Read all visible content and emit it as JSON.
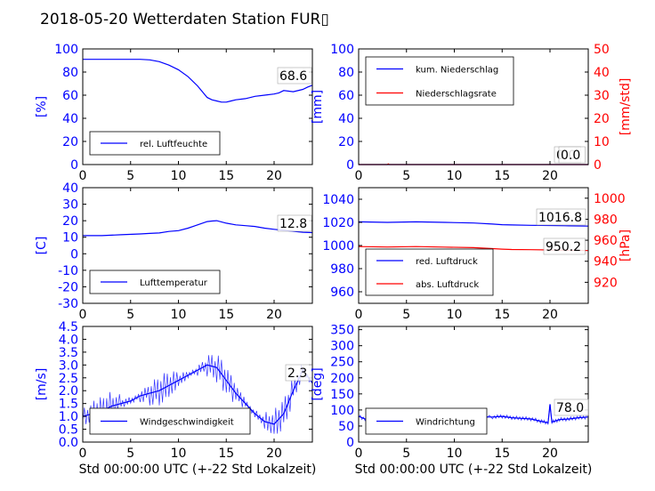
{
  "figure": {
    "title": "2018-05-20 Wetterdaten Station FUR▯"
  },
  "colors": {
    "blue": "#0000ff",
    "red": "#ff0000",
    "lightblue": "#7777ff",
    "tick_left": "#0000ff",
    "tick_right": "#ff0000"
  },
  "chart_data": [
    {
      "id": "humidity",
      "type": "line",
      "xlim": [
        0,
        24
      ],
      "ylim": [
        0,
        100
      ],
      "xticks": [
        0,
        5,
        10,
        15,
        20
      ],
      "yticks": [
        0,
        20,
        40,
        60,
        80,
        100
      ],
      "ylabel": "[%]",
      "annotation": "68.6",
      "legend": {
        "placement": "lower-left",
        "entries": [
          "rel. Luftfeuchte"
        ]
      },
      "series": [
        {
          "name": "rel. Luftfeuchte",
          "color": "#0000ff",
          "x": [
            0,
            2,
            4,
            6,
            7,
            8,
            9,
            10,
            11,
            12,
            12.5,
            13,
            13.5,
            14,
            14.5,
            15,
            15.5,
            16,
            17,
            18,
            19,
            20,
            20.5,
            21,
            22,
            23,
            23.5,
            24
          ],
          "y": [
            91,
            91,
            91,
            91,
            90.5,
            89,
            86,
            82,
            76,
            68,
            63,
            58,
            56,
            55,
            54,
            54,
            55,
            56,
            57,
            59,
            60,
            61,
            62,
            64,
            63,
            65,
            67,
            68.6
          ]
        }
      ]
    },
    {
      "id": "precip",
      "type": "line",
      "xlim": [
        0,
        24
      ],
      "ylim": [
        0,
        100
      ],
      "ylim_right": [
        0,
        50
      ],
      "xticks": [
        0,
        5,
        10,
        15,
        20
      ],
      "yticks": [
        0,
        20,
        40,
        60,
        80,
        100
      ],
      "yticks_right": [
        0,
        10,
        20,
        30,
        40,
        50
      ],
      "ylabel": "[mm]",
      "ylabel_right": "[mm/std]",
      "annotations": [
        "0.0",
        "0.0"
      ],
      "legend": {
        "placement": "upper-left",
        "entries": [
          "kum. Niederschlag",
          "Niederschlagsrate"
        ]
      },
      "series": [
        {
          "name": "kum. Niederschlag",
          "color": "#0000ff",
          "x": [
            0,
            24
          ],
          "y": [
            0,
            0
          ]
        },
        {
          "name": "Niederschlagsrate",
          "color": "#ff0000",
          "axis": "right",
          "x": [
            0,
            3,
            3.1,
            3.2,
            24
          ],
          "y": [
            0,
            0,
            0.3,
            0,
            0
          ]
        }
      ]
    },
    {
      "id": "temperature",
      "type": "line",
      "xlim": [
        0,
        24
      ],
      "ylim": [
        -30,
        40
      ],
      "xticks": [
        0,
        5,
        10,
        15,
        20
      ],
      "yticks": [
        -30,
        -20,
        -10,
        0,
        10,
        20,
        30,
        40
      ],
      "ylabel": "[C]",
      "annotation": "12.8",
      "legend": {
        "placement": "lower-left",
        "entries": [
          "Lufttemperatur"
        ]
      },
      "series": [
        {
          "name": "Lufttemperatur",
          "color": "#0000ff",
          "x": [
            0,
            2,
            4,
            6,
            7,
            8,
            9,
            10,
            11,
            12,
            13,
            13.5,
            14,
            15,
            16,
            17,
            18,
            19,
            20,
            21,
            22,
            23,
            24
          ],
          "y": [
            11,
            11,
            11.5,
            12,
            12.3,
            12.6,
            13.5,
            14,
            15.5,
            17.5,
            19.5,
            19.8,
            20,
            18.5,
            17.5,
            17,
            16.5,
            15.5,
            14.8,
            14.2,
            13.6,
            13,
            12.8
          ]
        }
      ]
    },
    {
      "id": "pressure",
      "type": "line",
      "xlim": [
        0,
        24
      ],
      "ylim": [
        950,
        1050
      ],
      "ylim_right": [
        900,
        1010
      ],
      "xticks": [
        0,
        5,
        10,
        15,
        20
      ],
      "yticks": [
        960,
        980,
        1000,
        1020,
        1040
      ],
      "yticks_right": [
        920,
        940,
        960,
        980,
        1000
      ],
      "ylabel_right": "[hPa]",
      "annotations": [
        "1016.8",
        "950.2"
      ],
      "legend": {
        "placement": "lower-left",
        "entries": [
          "red. Luftdruck",
          "abs. Luftdruck"
        ]
      },
      "series": [
        {
          "name": "red. Luftdruck",
          "color": "#0000ff",
          "x": [
            0,
            3,
            6,
            9,
            12,
            14,
            15,
            16,
            18,
            20,
            22,
            24
          ],
          "y": [
            1020.5,
            1020,
            1020.5,
            1020,
            1019.5,
            1018.5,
            1018,
            1017.8,
            1017.5,
            1017.3,
            1017,
            1016.8
          ]
        },
        {
          "name": "abs. Luftdruck",
          "color": "#ff0000",
          "axis": "right",
          "x": [
            0,
            3,
            6,
            9,
            12,
            14,
            15,
            16,
            18,
            20,
            22,
            24
          ],
          "y": [
            954,
            953.6,
            954,
            953.5,
            953,
            952,
            951.5,
            951.2,
            951,
            950.8,
            950.5,
            950.2
          ]
        }
      ]
    },
    {
      "id": "wind",
      "type": "line",
      "xlim": [
        0,
        24
      ],
      "ylim": [
        0,
        4.5
      ],
      "xticks": [
        0,
        5,
        10,
        15,
        20
      ],
      "yticks": [
        0.0,
        0.5,
        1.0,
        1.5,
        2.0,
        2.5,
        3.0,
        3.5,
        4.0,
        4.5
      ],
      "ylabel": "[m/s]",
      "xlabel": "Std 00:00:00 UTC (+-22 Std Lokalzeit)",
      "annotation": "2.3",
      "legend": {
        "placement": "lower-left",
        "entries": [
          "Windgeschwindigkeit"
        ]
      },
      "series": [
        {
          "name": "Windgeschwindigkeit",
          "color": "#0000ff",
          "x": [
            0,
            1,
            2,
            3,
            4,
            5,
            6,
            7,
            8,
            9,
            10,
            11,
            12,
            13,
            14,
            15,
            16,
            17,
            18,
            19,
            20,
            21,
            22,
            23,
            24
          ],
          "y": [
            1.0,
            1.1,
            1.2,
            1.4,
            1.5,
            1.6,
            1.8,
            1.9,
            2.0,
            2.2,
            2.4,
            2.6,
            2.8,
            3.0,
            2.9,
            2.4,
            1.9,
            1.5,
            1.1,
            0.8,
            0.7,
            1.1,
            2.0,
            2.8,
            2.3
          ]
        }
      ]
    },
    {
      "id": "direction",
      "type": "line",
      "xlim": [
        0,
        24
      ],
      "ylim": [
        0,
        360
      ],
      "xticks": [
        0,
        5,
        10,
        15,
        20
      ],
      "yticks": [
        0,
        50,
        100,
        150,
        200,
        250,
        300,
        350
      ],
      "ylabel": "[deg]",
      "xlabel": "Std 00:00:00 UTC (+-22 Std Lokalzeit)",
      "annotation": "78.0",
      "legend": {
        "placement": "lower-left",
        "entries": [
          "Windrichtung"
        ]
      },
      "series": [
        {
          "name": "Windrichtung",
          "color": "#0000ff",
          "x": [
            0,
            1,
            2,
            4,
            6,
            8,
            10,
            12,
            14,
            15,
            16,
            17,
            18,
            19,
            19.8,
            20,
            20.2,
            21,
            22,
            23,
            24
          ],
          "y": [
            80,
            68,
            66,
            70,
            72,
            74,
            76,
            78,
            78,
            80,
            76,
            74,
            72,
            65,
            60,
            118,
            62,
            70,
            72,
            76,
            78
          ]
        }
      ]
    }
  ]
}
